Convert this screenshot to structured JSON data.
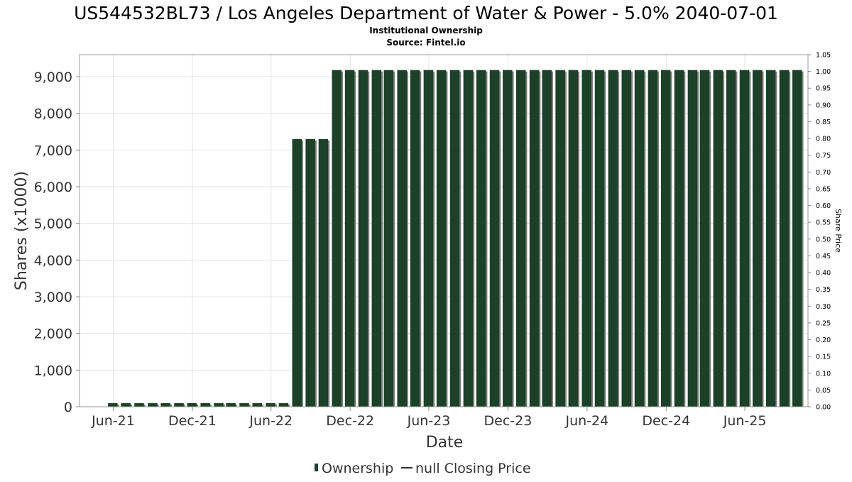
{
  "chart_data": {
    "type": "bar",
    "title": "US544532BL73 / Los Angeles Department of Water & Power - 5.0% 2040-07-01",
    "subtitle_line1": "Institutional Ownership",
    "subtitle_line2": "Source: Fintel.io",
    "xlabel": "Date",
    "ylabel": "Shares (x1000)",
    "y2label": "Share Price",
    "ylim": [
      0,
      9600
    ],
    "y_ticks": [
      "0",
      "1,000",
      "2,000",
      "3,000",
      "4,000",
      "5,000",
      "6,000",
      "7,000",
      "8,000",
      "9,000"
    ],
    "y_tick_values": [
      0,
      1000,
      2000,
      3000,
      4000,
      5000,
      6000,
      7000,
      8000,
      9000
    ],
    "y2lim": [
      0,
      1.05
    ],
    "y2_ticks": [
      "0.00",
      "0.05",
      "0.10",
      "0.15",
      "0.20",
      "0.25",
      "0.30",
      "0.35",
      "0.40",
      "0.45",
      "0.50",
      "0.55",
      "0.60",
      "0.65",
      "0.70",
      "0.75",
      "0.80",
      "0.85",
      "0.90",
      "0.95",
      "1.00",
      "1.05"
    ],
    "y2_tick_values": [
      0,
      0.05,
      0.1,
      0.15,
      0.2,
      0.25,
      0.3,
      0.35,
      0.4,
      0.45,
      0.5,
      0.55,
      0.6,
      0.65,
      0.7,
      0.75,
      0.8,
      0.85,
      0.9,
      0.95,
      1.0,
      1.05
    ],
    "x_range": [
      "2021-03-15",
      "2025-10-25"
    ],
    "x_ticks": [
      "Jun-21",
      "Dec-21",
      "Jun-22",
      "Dec-22",
      "Jun-23",
      "Dec-23",
      "Jun-24",
      "Dec-24",
      "Jun-25"
    ],
    "x_tick_dates": [
      "2021-06-01",
      "2021-12-01",
      "2022-06-01",
      "2022-12-01",
      "2023-06-01",
      "2023-12-01",
      "2024-06-01",
      "2024-12-01",
      "2025-06-01"
    ],
    "grid": true,
    "legend_position": "bottom",
    "colors": {
      "bar": "#1c4128",
      "bar_shadow": "#808080",
      "grid": "#e4e4e4",
      "frame": "#999999"
    },
    "series": [
      {
        "name": "Ownership",
        "dates": [
          "2021-05-31",
          "2021-06-30",
          "2021-07-31",
          "2021-08-31",
          "2021-09-30",
          "2021-10-31",
          "2021-11-30",
          "2021-12-31",
          "2022-01-31",
          "2022-02-28",
          "2022-03-31",
          "2022-04-30",
          "2022-05-31",
          "2022-06-30",
          "2022-07-31",
          "2022-08-31",
          "2022-09-30",
          "2022-10-31",
          "2022-11-30",
          "2022-12-31",
          "2023-01-31",
          "2023-02-28",
          "2023-03-31",
          "2023-04-30",
          "2023-05-31",
          "2023-06-30",
          "2023-07-31",
          "2023-08-31",
          "2023-09-30",
          "2023-10-31",
          "2023-11-30",
          "2023-12-31",
          "2024-01-31",
          "2024-02-29",
          "2024-03-31",
          "2024-04-30",
          "2024-05-31",
          "2024-06-30",
          "2024-07-31",
          "2024-08-31",
          "2024-09-30",
          "2024-10-31",
          "2024-11-30",
          "2024-12-31",
          "2025-01-31",
          "2025-02-28",
          "2025-03-31",
          "2025-04-30",
          "2025-05-31",
          "2025-06-30",
          "2025-07-31",
          "2025-08-31",
          "2025-09-30"
        ],
        "values": [
          100,
          100,
          100,
          100,
          100,
          100,
          100,
          100,
          100,
          100,
          100,
          100,
          100,
          100,
          7300,
          7300,
          7300,
          9180,
          9180,
          9180,
          9180,
          9180,
          9180,
          9180,
          9180,
          9180,
          9180,
          9180,
          9180,
          9180,
          9180,
          9180,
          9180,
          9180,
          9180,
          9180,
          9180,
          9180,
          9180,
          9180,
          9180,
          9180,
          9180,
          9180,
          9180,
          9180,
          9180,
          9180,
          9180,
          9180,
          9180,
          9180,
          9180
        ]
      }
    ],
    "legend": [
      {
        "label": "Ownership"
      },
      {
        "label": "null Closing Price"
      }
    ]
  }
}
